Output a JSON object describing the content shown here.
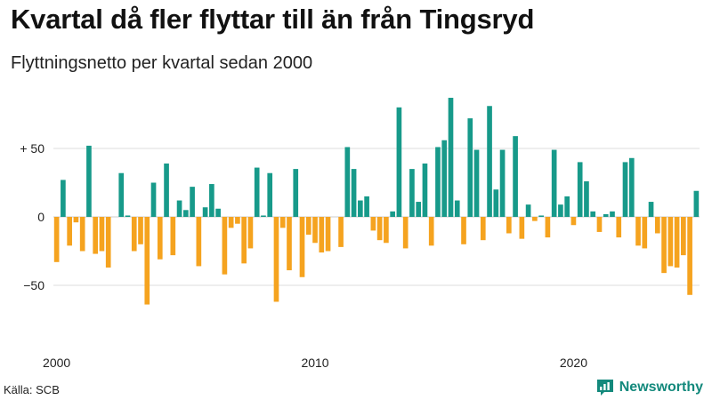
{
  "header": {
    "title": "Kvartal då fler flyttar till än från Tingsryd",
    "subtitle": "Flyttningsnetto per kvartal sedan 2000"
  },
  "footer": {
    "source": "Källa: SCB",
    "brand": "Newsworthy"
  },
  "colors": {
    "positive": "#179a8a",
    "negative": "#f5a31f",
    "brand": "#13897c",
    "grid": "#dddddd"
  },
  "chart_data": {
    "type": "bar",
    "title": "Kvartal då fler flyttar till än från Tingsryd",
    "subtitle": "Flyttningsnetto per kvartal sedan 2000",
    "xlabel": "",
    "ylabel": "",
    "ylim": [
      -75,
      90
    ],
    "yticks": [
      50,
      0,
      -50
    ],
    "ytick_labels": [
      "+ 50",
      "0",
      "−50"
    ],
    "xtick_labels": [
      "2000",
      "2010",
      "2020"
    ],
    "xtick_index": [
      0,
      40,
      80
    ],
    "grid": true,
    "first_quarter": "2000 Q1",
    "values": [
      -33,
      27,
      -21,
      -4,
      -25,
      52,
      -27,
      -25,
      -37,
      0,
      32,
      1,
      -25,
      -20,
      -64,
      25,
      -31,
      39,
      -28,
      12,
      5,
      22,
      -36,
      7,
      24,
      6,
      -42,
      -8,
      -5,
      -34,
      -23,
      36,
      1,
      32,
      -62,
      -8,
      -39,
      35,
      -44,
      -13,
      -19,
      -26,
      -25,
      0,
      -22,
      51,
      35,
      12,
      15,
      -10,
      -17,
      -19,
      4,
      80,
      -23,
      35,
      11,
      39,
      -21,
      51,
      56,
      87,
      12,
      -20,
      72,
      49,
      -17,
      81,
      20,
      49,
      -12,
      59,
      -16,
      9,
      -3,
      1,
      -15,
      49,
      9,
      15,
      -6,
      40,
      26,
      4,
      -11,
      2,
      4,
      -15,
      40,
      43,
      -21,
      -23,
      11,
      -12,
      -41,
      -36,
      -37,
      -28,
      -57,
      19
    ]
  }
}
